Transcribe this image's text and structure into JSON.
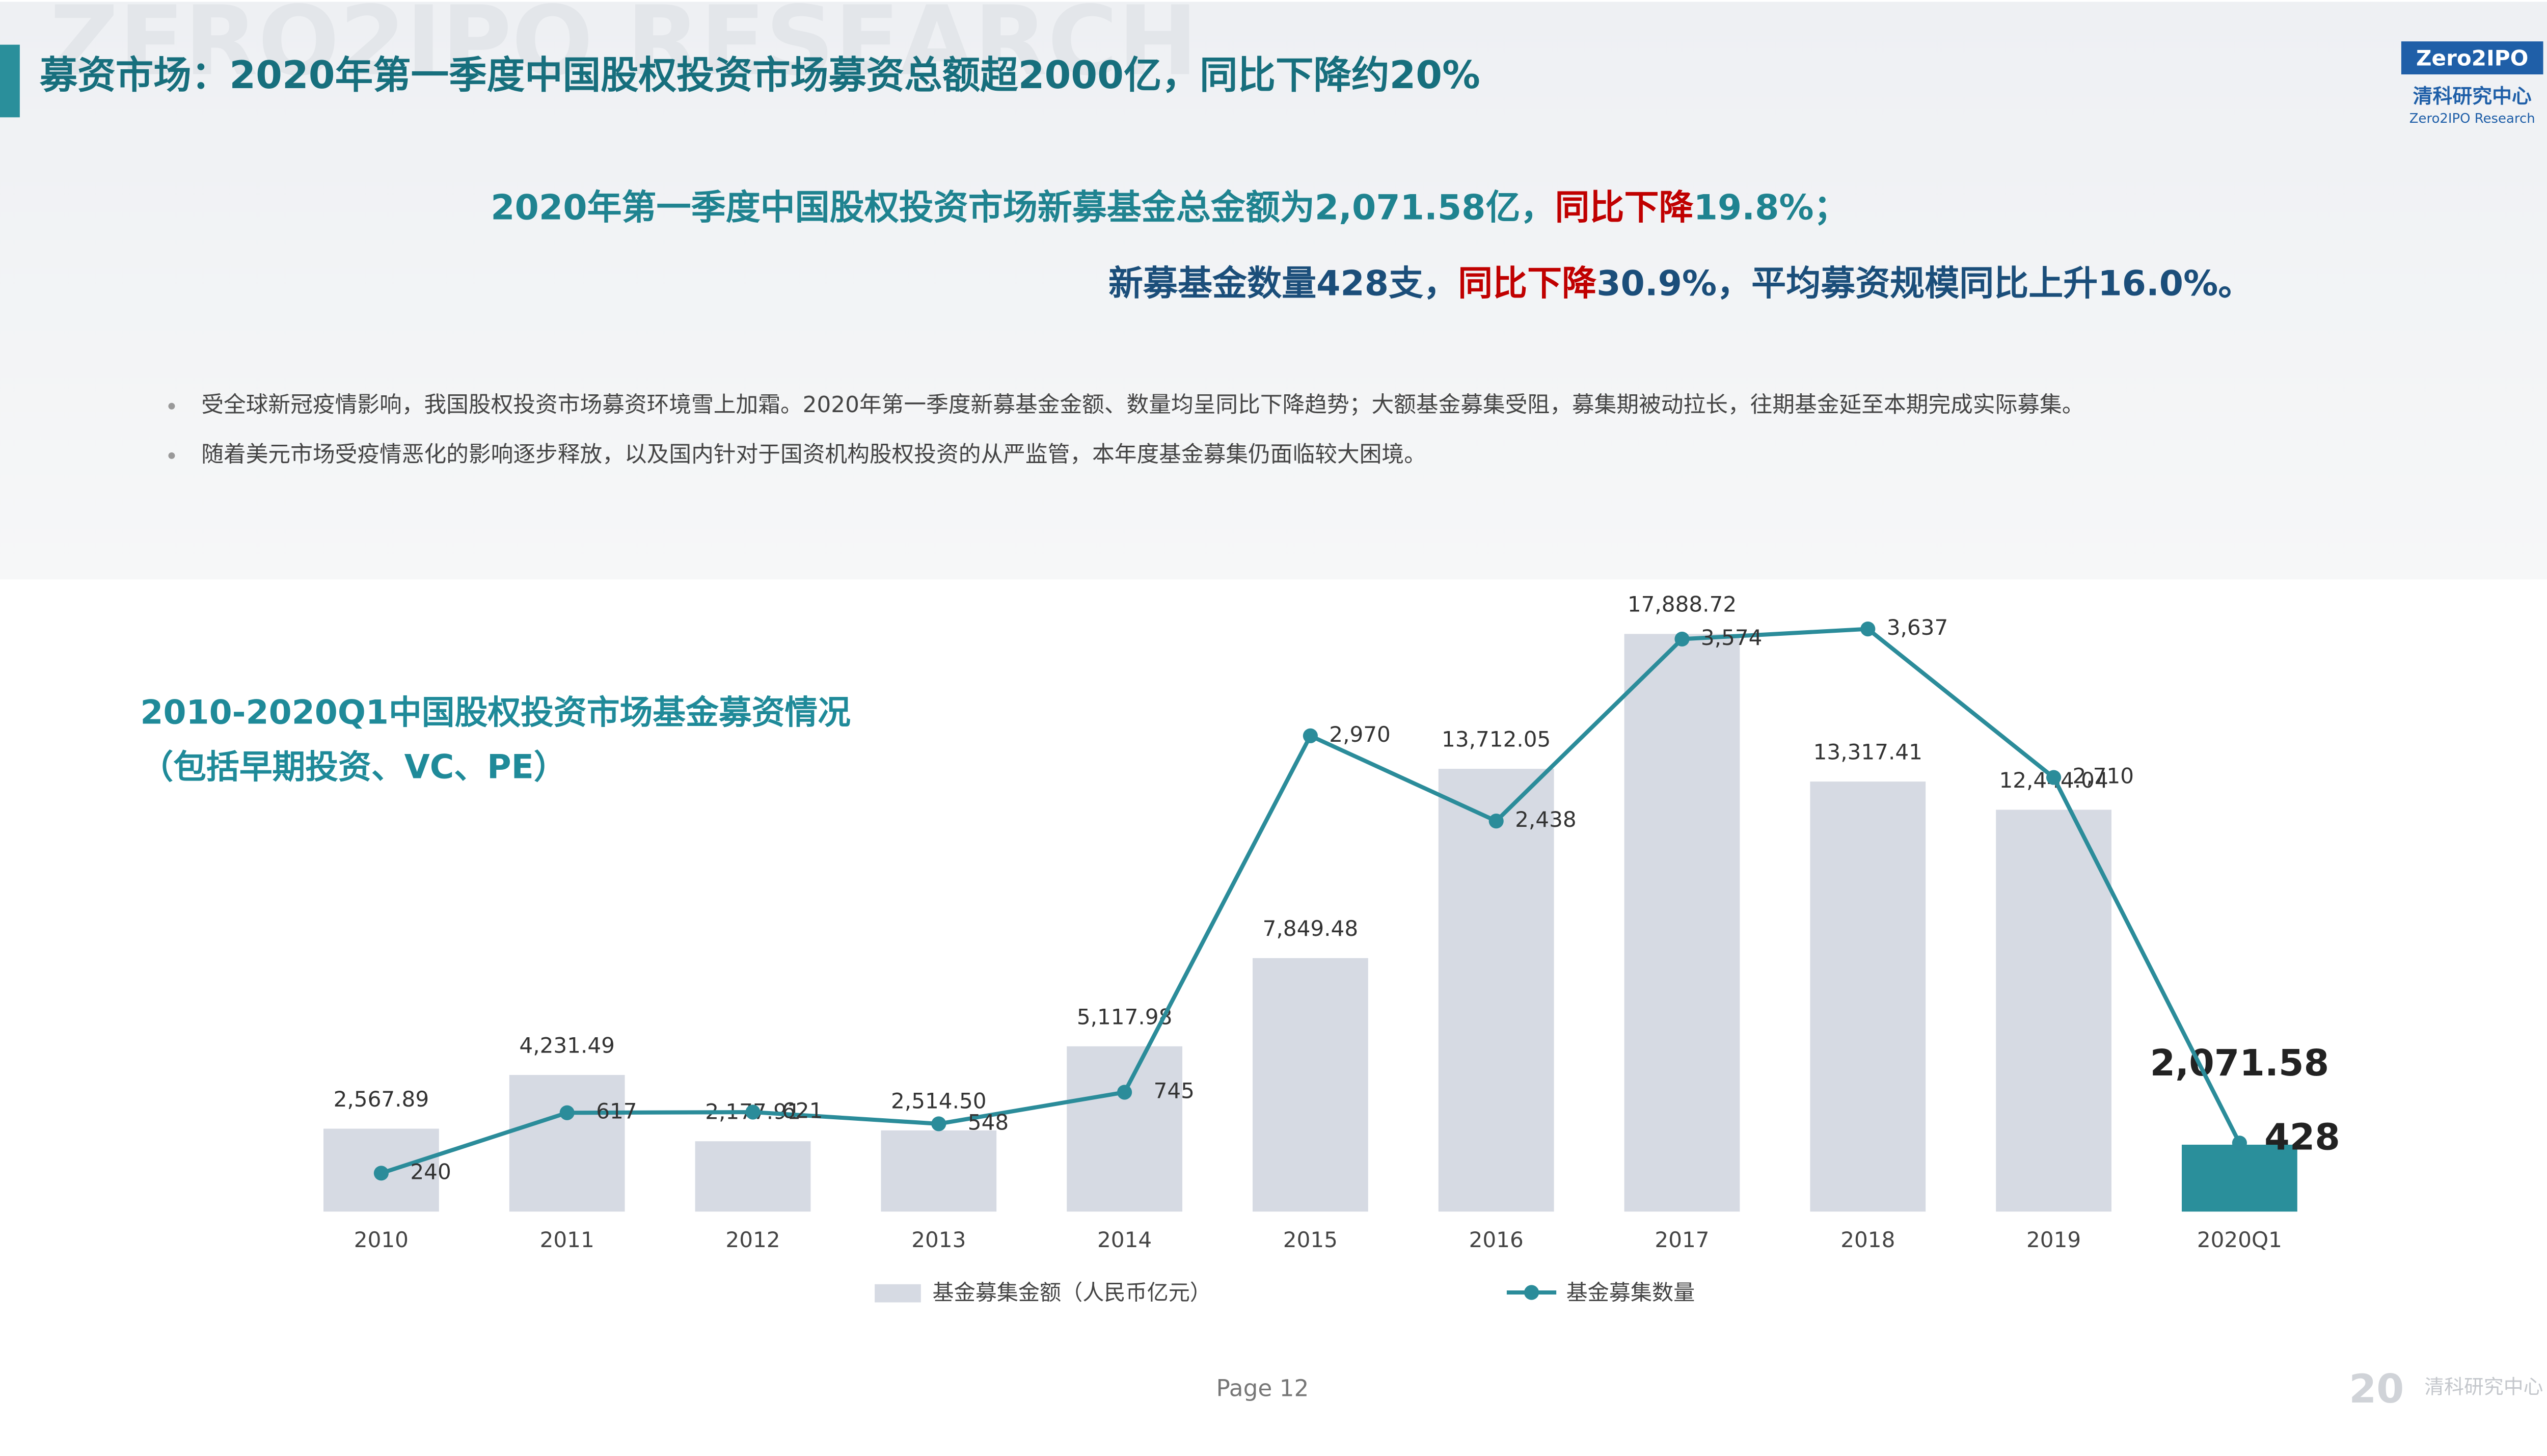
{
  "header": {
    "title": "募资市场：2020年第一季度中国股权投资市场募资总额超2000亿，同比下降约20%",
    "watermark": "ZERO2IPO RESEARCH",
    "logo": {
      "brand": "Zero2IPO",
      "cn": "清科研究中心",
      "en": "Zero2IPO Research"
    }
  },
  "summary": {
    "line1": [
      "2020年第一季度中国股权投资市场新募基金总金额为2,071.58亿，",
      "同比下降",
      "19.8%；"
    ],
    "line2": [
      "新募基金数量428支，",
      "同比下降",
      "30.9%，平均募资规模同比上升16.0%。"
    ]
  },
  "bullets": [
    "受全球新冠疫情影响，我国股权投资市场募资环境雪上加霜。2020年第一季度新募基金金额、数量均呈同比下降趋势；大额基金募集受阻，募集期被动拉长，往期基金延至本期完成实际募集。",
    "随着美元市场受疫情恶化的影响逐步释放，以及国内针对于国资机构股权投资的从严监管，本年度基金募集仍面临较大困境。"
  ],
  "chart_data": {
    "type": "bar_line",
    "title": [
      "2010-2020Q1中国股权投资市场基金募资情况",
      "（包括早期投资、VC、PE）"
    ],
    "categories": [
      "2010",
      "2011",
      "2012",
      "2013",
      "2014",
      "2015",
      "2016",
      "2017",
      "2018",
      "2019",
      "2020Q1"
    ],
    "highlight_color": "#2a8f9b",
    "series": [
      {
        "name": "基金募集金额（人民币亿元）",
        "type": "bar",
        "color": "#d6dae3",
        "values": [
          2567.89,
          4231.49,
          2177.91,
          2514.5,
          5117.98,
          7849.48,
          13712.05,
          17888.72,
          13317.41,
          12444.04,
          2071.58
        ],
        "value_labels": [
          "2,567.89",
          "4,231.49",
          "2,177.91",
          "2,514.50",
          "5,117.98",
          "7,849.48",
          "13,712.05",
          "17,888.72",
          "13,317.41",
          "12,444.04",
          "2,071.58"
        ]
      },
      {
        "name": "基金募集数量",
        "type": "line",
        "axis": "y2",
        "color": "#2b8c9a",
        "values": [
          240,
          617,
          621,
          548,
          745,
          2970,
          2438,
          3574,
          3637,
          2710,
          428
        ],
        "value_labels": [
          "240",
          "617",
          "621",
          "548",
          "745",
          "2,970",
          "2,438",
          "3,574",
          "3,637",
          "2,710",
          "428"
        ]
      }
    ]
  },
  "footer": {
    "page": "Page  12",
    "badge": "20",
    "org": "清科研究中心"
  }
}
